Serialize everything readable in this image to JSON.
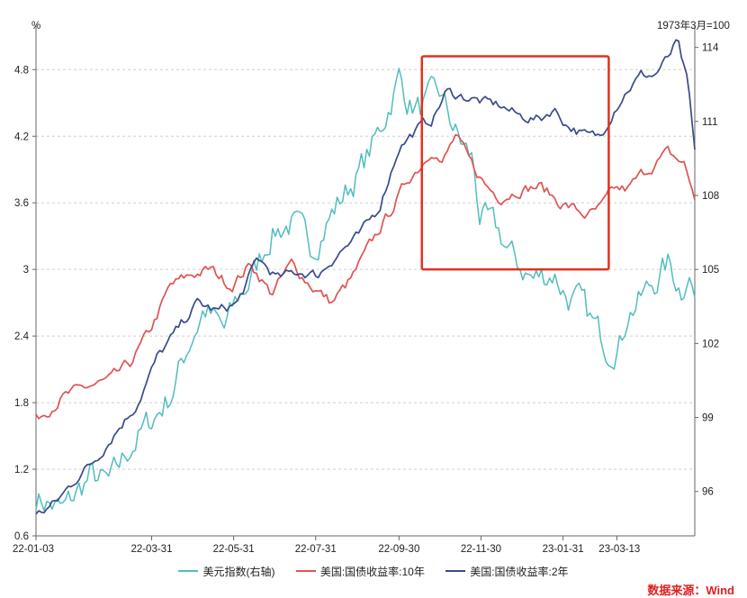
{
  "chart_data": {
    "type": "line",
    "left_axis_label": "%",
    "right_axis_label": "1973年3月=100",
    "x_ticks": [
      "22-01-03",
      "22-03-31",
      "22-05-31",
      "22-07-31",
      "22-09-30",
      "22-11-30",
      "23-01-31",
      "23-03-13"
    ],
    "left_ticks": [
      "0.6",
      "1.2",
      "1.8",
      "2.4",
      "3",
      "3.6",
      "4.2",
      "4.8"
    ],
    "right_ticks": [
      "96",
      "99",
      "102",
      "105",
      "108",
      "111",
      "114"
    ],
    "ylim_left": [
      0.6,
      5.2
    ],
    "ylim_right": [
      94.2,
      114.9
    ],
    "highlight_box": {
      "x_start": "22-10-03",
      "x_end": "23-02-01",
      "y_range_left": [
        3.0,
        4.92
      ]
    },
    "series": [
      {
        "name": "美元指数(右轴)",
        "axis": "right",
        "color": "#52bdbd",
        "points": [
          [
            0,
            95.8
          ],
          [
            20,
            95.2
          ],
          [
            40,
            96.6
          ],
          [
            55,
            96.3
          ],
          [
            70,
            97.8
          ],
          [
            85,
            98.8
          ],
          [
            100,
            99.9
          ],
          [
            115,
            102.2
          ],
          [
            125,
            103.4
          ],
          [
            140,
            102.5
          ],
          [
            150,
            103.8
          ],
          [
            160,
            104.6
          ],
          [
            175,
            106.5
          ],
          [
            190,
            106.9
          ],
          [
            205,
            105.9
          ],
          [
            225,
            107.7
          ],
          [
            240,
            108.9
          ],
          [
            255,
            110.5
          ],
          [
            270,
            112.8
          ],
          [
            277,
            111.8
          ],
          [
            285,
            111.5
          ],
          [
            300,
            112.1
          ],
          [
            315,
            110.2
          ],
          [
            325,
            109.4
          ],
          [
            330,
            107.2
          ],
          [
            345,
            106.4
          ],
          [
            355,
            105.4
          ],
          [
            370,
            104.6
          ],
          [
            385,
            104.9
          ],
          [
            395,
            103.9
          ],
          [
            405,
            103.6
          ],
          [
            415,
            102.7
          ],
          [
            425,
            101.9
          ],
          [
            435,
            102.1
          ],
          [
            440,
            103.3
          ],
          [
            450,
            103.8
          ],
          [
            460,
            104.5
          ],
          [
            470,
            105.2
          ],
          [
            480,
            104.2
          ],
          [
            485,
            105.1
          ],
          [
            490,
            103.9
          ]
        ]
      },
      {
        "name": "美国:国债收益率:10年",
        "axis": "left",
        "color": "#e05252",
        "points": [
          [
            0,
            1.65
          ],
          [
            20,
            1.85
          ],
          [
            40,
            1.95
          ],
          [
            55,
            2.0
          ],
          [
            70,
            2.15
          ],
          [
            85,
            2.45
          ],
          [
            100,
            2.85
          ],
          [
            115,
            2.95
          ],
          [
            130,
            3.0
          ],
          [
            145,
            2.85
          ],
          [
            160,
            3.05
          ],
          [
            175,
            2.78
          ],
          [
            190,
            3.05
          ],
          [
            205,
            2.85
          ],
          [
            220,
            2.7
          ],
          [
            235,
            2.92
          ],
          [
            250,
            3.25
          ],
          [
            265,
            3.55
          ],
          [
            277,
            3.82
          ],
          [
            287,
            3.95
          ],
          [
            295,
            4.1
          ],
          [
            302,
            3.95
          ],
          [
            312,
            4.2
          ],
          [
            325,
            3.92
          ],
          [
            335,
            3.75
          ],
          [
            345,
            3.65
          ],
          [
            360,
            3.72
          ],
          [
            375,
            3.75
          ],
          [
            390,
            3.6
          ],
          [
            400,
            3.55
          ],
          [
            410,
            3.48
          ],
          [
            420,
            3.55
          ],
          [
            430,
            3.72
          ],
          [
            440,
            3.72
          ],
          [
            450,
            3.85
          ],
          [
            460,
            3.95
          ],
          [
            470,
            4.05
          ],
          [
            482,
            3.95
          ],
          [
            490,
            3.65
          ]
        ]
      },
      {
        "name": "美国:国债收益率:2年",
        "axis": "left",
        "color": "#3a4a8c",
        "points": [
          [
            0,
            0.78
          ],
          [
            15,
            0.9
          ],
          [
            30,
            1.12
          ],
          [
            45,
            1.3
          ],
          [
            60,
            1.55
          ],
          [
            75,
            1.78
          ],
          [
            90,
            2.2
          ],
          [
            105,
            2.45
          ],
          [
            120,
            2.7
          ],
          [
            135,
            2.62
          ],
          [
            150,
            2.7
          ],
          [
            165,
            3.1
          ],
          [
            180,
            2.92
          ],
          [
            195,
            2.98
          ],
          [
            210,
            2.95
          ],
          [
            225,
            3.15
          ],
          [
            240,
            3.3
          ],
          [
            255,
            3.55
          ],
          [
            270,
            4.1
          ],
          [
            285,
            4.28
          ],
          [
            295,
            4.35
          ],
          [
            305,
            4.6
          ],
          [
            320,
            4.55
          ],
          [
            335,
            4.5
          ],
          [
            345,
            4.48
          ],
          [
            360,
            4.38
          ],
          [
            375,
            4.35
          ],
          [
            385,
            4.45
          ],
          [
            395,
            4.3
          ],
          [
            410,
            4.2
          ],
          [
            420,
            4.2
          ],
          [
            430,
            4.45
          ],
          [
            440,
            4.62
          ],
          [
            450,
            4.75
          ],
          [
            460,
            4.75
          ],
          [
            470,
            4.9
          ],
          [
            477,
            5.05
          ],
          [
            485,
            4.65
          ],
          [
            490,
            4.05
          ]
        ]
      }
    ]
  },
  "source_note": "数据来源：Wind"
}
